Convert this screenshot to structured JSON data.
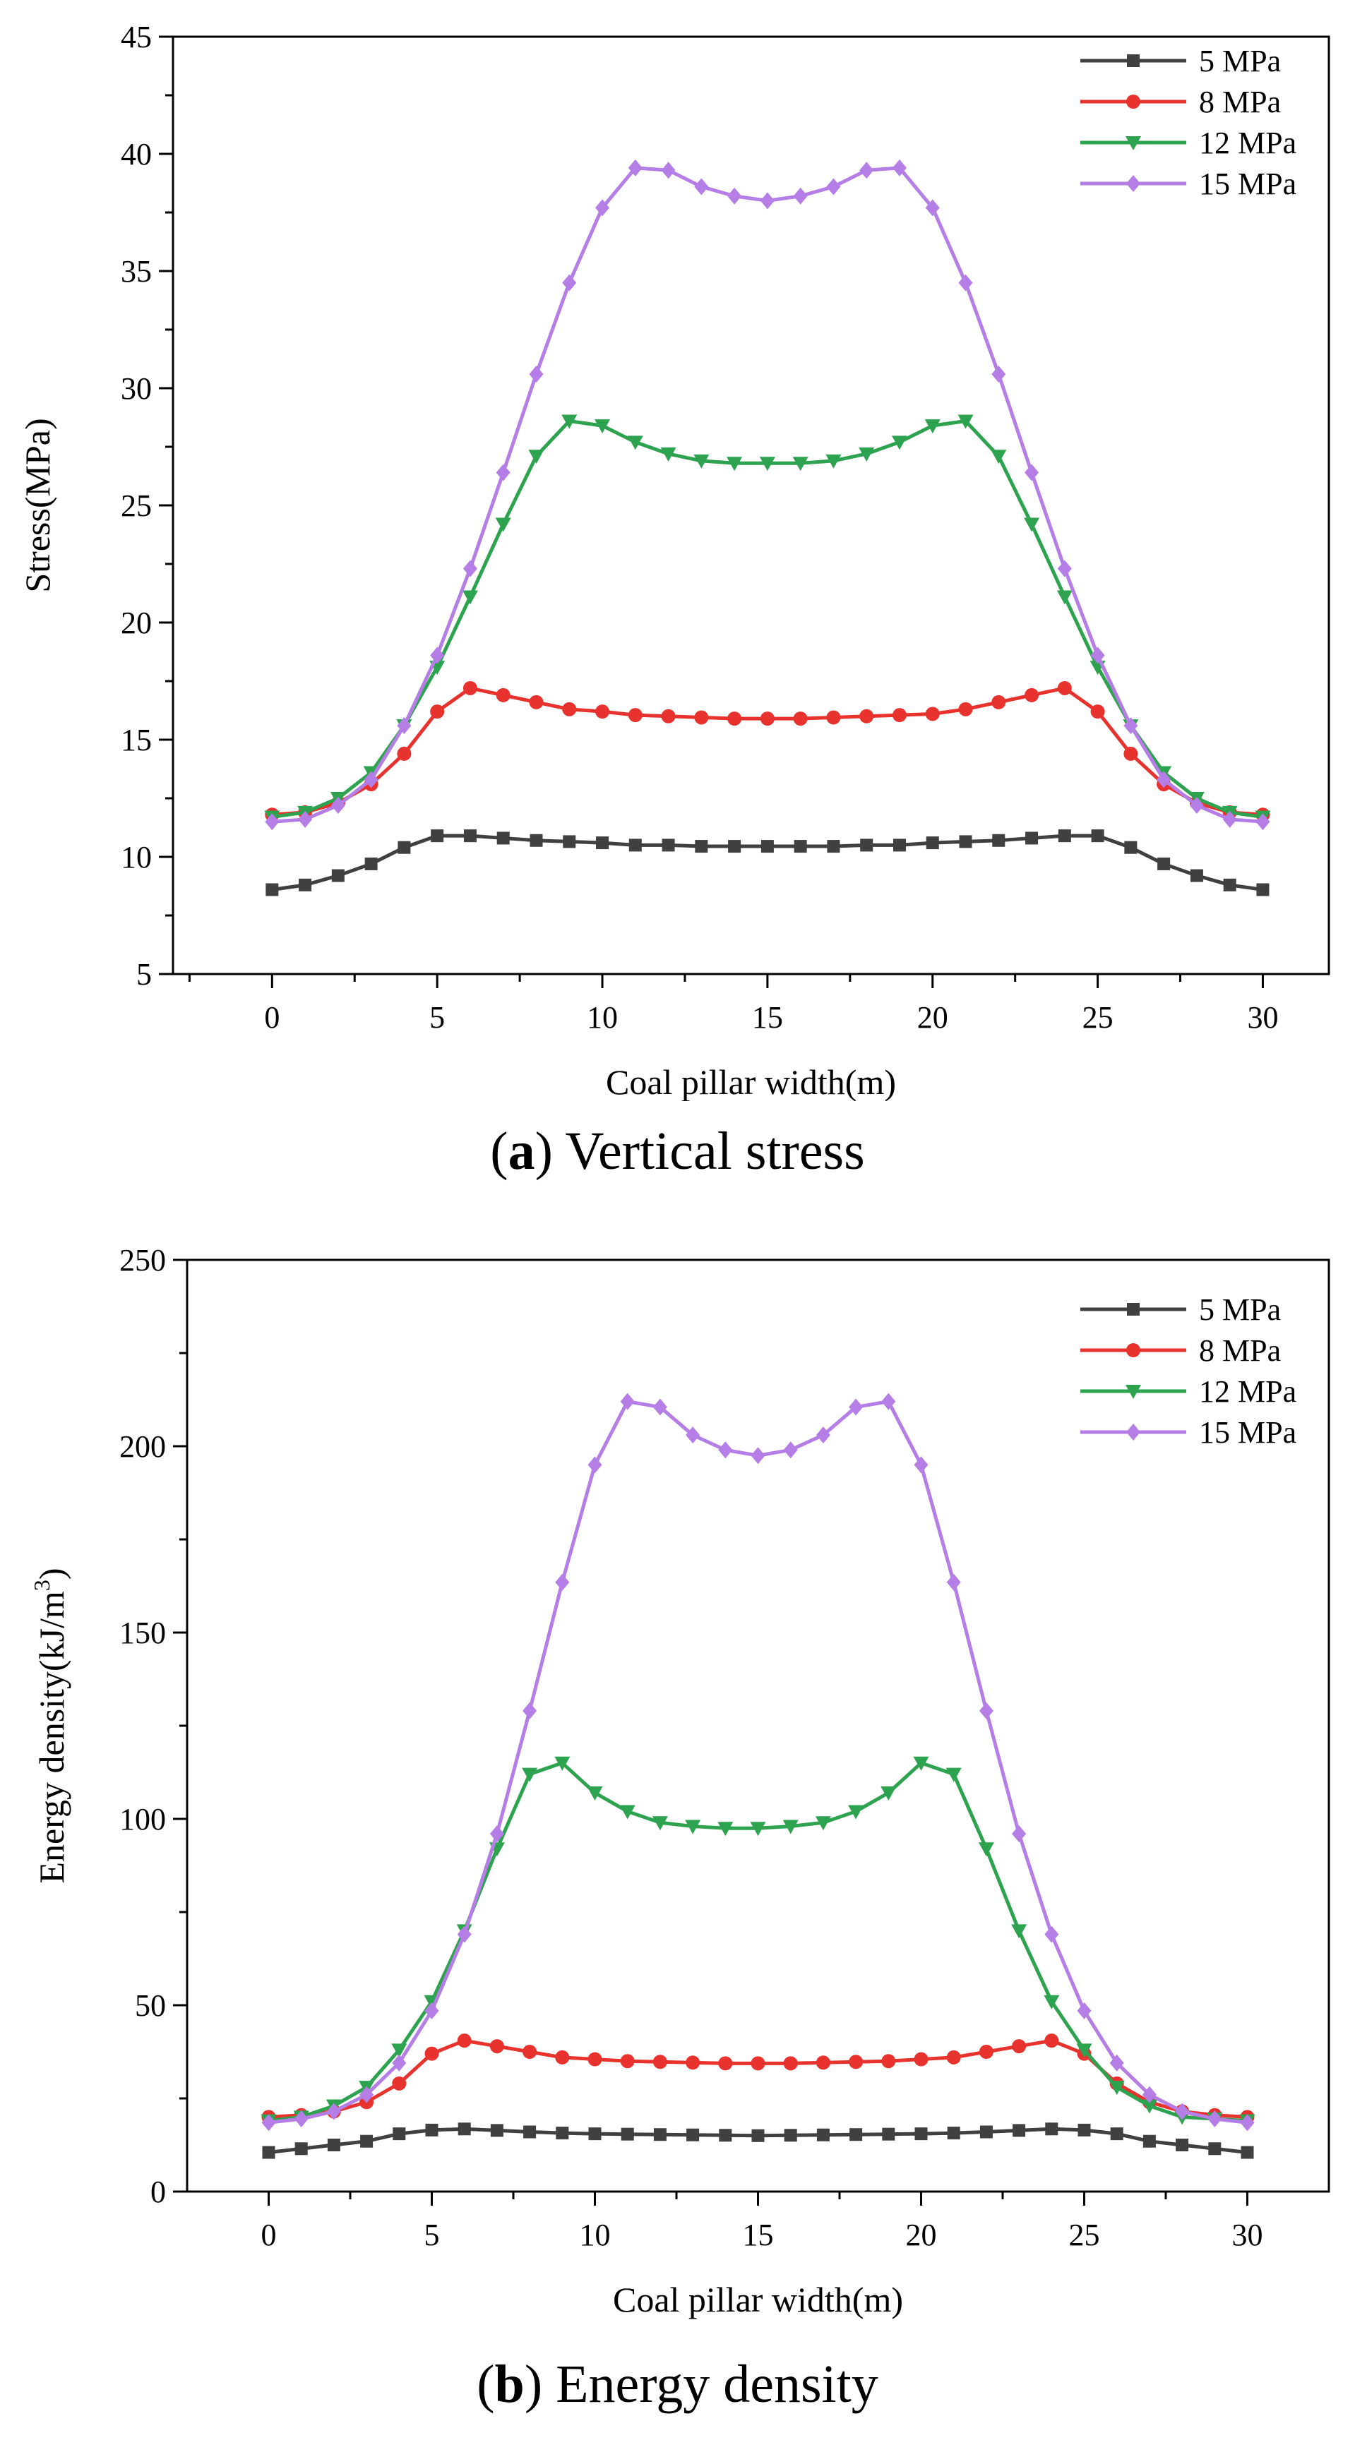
{
  "chart_data": [
    {
      "type": "line",
      "caption_letter": "a",
      "caption_text": "Vertical stress",
      "xlabel": "Coal pillar width(m)",
      "ylabel": "Stress(MPa)",
      "xlim": [
        -3,
        32
      ],
      "ylim": [
        5,
        45
      ],
      "xticks": [
        0,
        5,
        10,
        15,
        20,
        25,
        30
      ],
      "yticks": [
        5,
        10,
        15,
        20,
        25,
        30,
        35,
        40,
        45
      ],
      "legend_position": "top-right",
      "x": [
        0,
        1,
        2,
        3,
        4,
        5,
        6,
        7,
        8,
        9,
        10,
        11,
        12,
        13,
        14,
        15,
        16,
        17,
        18,
        19,
        20,
        21,
        22,
        23,
        24,
        25,
        26,
        27,
        28,
        29,
        30
      ],
      "series": [
        {
          "name": "5 MPa",
          "color": "#404040",
          "marker": "square",
          "values": [
            8.6,
            8.8,
            9.2,
            9.7,
            10.4,
            10.9,
            10.9,
            10.8,
            10.7,
            10.65,
            10.6,
            10.5,
            10.5,
            10.45,
            10.45,
            10.45,
            10.45,
            10.45,
            10.5,
            10.5,
            10.6,
            10.65,
            10.7,
            10.8,
            10.9,
            10.9,
            10.4,
            9.7,
            9.2,
            8.8,
            8.6
          ]
        },
        {
          "name": "8 MPa",
          "color": "#e8322d",
          "marker": "circle",
          "values": [
            11.8,
            11.9,
            12.3,
            13.1,
            14.4,
            16.2,
            17.2,
            16.9,
            16.6,
            16.3,
            16.2,
            16.05,
            16.0,
            15.95,
            15.9,
            15.9,
            15.9,
            15.95,
            16.0,
            16.05,
            16.1,
            16.3,
            16.6,
            16.9,
            17.2,
            16.2,
            14.4,
            13.1,
            12.3,
            11.9,
            11.8
          ]
        },
        {
          "name": "12 MPa",
          "color": "#2ea34f",
          "marker": "triangle-down",
          "values": [
            11.7,
            11.9,
            12.5,
            13.6,
            15.6,
            18.1,
            21.1,
            24.2,
            27.1,
            28.6,
            28.4,
            27.7,
            27.2,
            26.9,
            26.8,
            26.8,
            26.8,
            26.9,
            27.2,
            27.7,
            28.4,
            28.6,
            27.1,
            24.2,
            21.1,
            18.1,
            15.6,
            13.6,
            12.5,
            11.9,
            11.7
          ]
        },
        {
          "name": "15 MPa",
          "color": "#b57de6",
          "marker": "diamond",
          "values": [
            11.5,
            11.6,
            12.2,
            13.3,
            15.6,
            18.6,
            22.3,
            26.4,
            30.6,
            34.5,
            37.7,
            39.4,
            39.3,
            38.6,
            38.2,
            38.0,
            38.2,
            38.6,
            39.3,
            39.4,
            37.7,
            34.5,
            30.6,
            26.4,
            22.3,
            18.6,
            15.6,
            13.3,
            12.2,
            11.6,
            11.5
          ]
        }
      ]
    },
    {
      "type": "line",
      "caption_letter": "b",
      "caption_text": "Energy density",
      "xlabel": "Coal pillar width(m)",
      "ylabel": "Energy density(kJ/m",
      "ylabel_sup": "3",
      "ylabel_end": ")",
      "xlim": [
        -2.5,
        32.5
      ],
      "ylim": [
        0,
        250
      ],
      "xticks": [
        0,
        5,
        10,
        15,
        20,
        25,
        30
      ],
      "yticks": [
        0,
        50,
        100,
        150,
        200,
        250
      ],
      "legend_position": "top-right",
      "x": [
        0,
        1,
        2,
        3,
        4,
        5,
        6,
        7,
        8,
        9,
        10,
        11,
        12,
        13,
        14,
        15,
        16,
        17,
        18,
        19,
        20,
        21,
        22,
        23,
        24,
        25,
        26,
        27,
        28,
        29,
        30
      ],
      "series": [
        {
          "name": "5 MPa",
          "color": "#404040",
          "marker": "square",
          "values": [
            10.5,
            11.5,
            12.5,
            13.5,
            15.5,
            16.5,
            16.8,
            16.4,
            16.0,
            15.7,
            15.5,
            15.4,
            15.3,
            15.2,
            15.1,
            15.0,
            15.1,
            15.2,
            15.3,
            15.4,
            15.5,
            15.7,
            16.0,
            16.4,
            16.8,
            16.5,
            15.5,
            13.5,
            12.5,
            11.5,
            10.5
          ]
        },
        {
          "name": "8 MPa",
          "color": "#e8322d",
          "marker": "circle",
          "values": [
            20.0,
            20.5,
            21.5,
            24.0,
            29.0,
            37.0,
            40.5,
            39.0,
            37.5,
            36.0,
            35.5,
            35.0,
            34.8,
            34.6,
            34.4,
            34.4,
            34.4,
            34.6,
            34.8,
            35.0,
            35.5,
            36.0,
            37.5,
            39.0,
            40.5,
            37.0,
            29.0,
            24.0,
            21.5,
            20.5,
            20.0
          ]
        },
        {
          "name": "12 MPa",
          "color": "#2ea34f",
          "marker": "triangle-down",
          "values": [
            19.0,
            20.0,
            23.0,
            28.0,
            38.0,
            51.0,
            70.0,
            92.0,
            112.0,
            115.0,
            107.0,
            102.0,
            99.0,
            98.0,
            97.5,
            97.5,
            98.0,
            99.0,
            102.0,
            107.0,
            115.0,
            112.0,
            92.0,
            70.0,
            51.0,
            38.0,
            28.0,
            23.0,
            20.0,
            19.5,
            19.0
          ]
        },
        {
          "name": "15 MPa",
          "color": "#b57de6",
          "marker": "diamond",
          "values": [
            18.5,
            19.5,
            21.5,
            26.0,
            34.5,
            48.5,
            69.0,
            96.0,
            129.0,
            163.5,
            195.0,
            212.0,
            210.5,
            203.0,
            199.0,
            197.5,
            199.0,
            203.0,
            210.5,
            212.0,
            195.0,
            163.5,
            129.0,
            96.0,
            69.0,
            48.5,
            34.5,
            26.0,
            21.5,
            19.5,
            18.5
          ]
        }
      ]
    }
  ]
}
